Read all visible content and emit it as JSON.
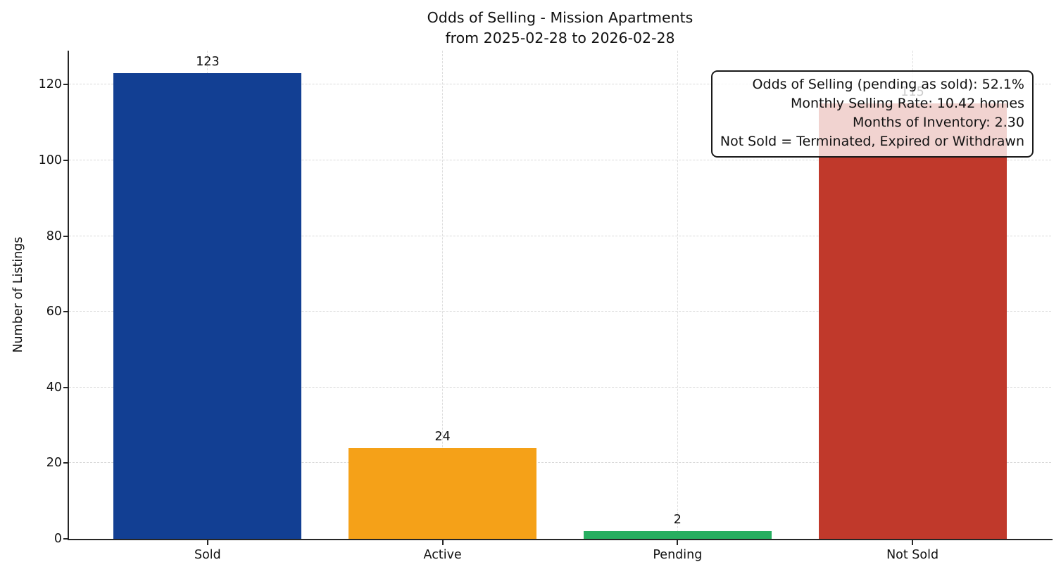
{
  "title": {
    "line1": "Odds of Selling - Mission Apartments",
    "line2": "from 2025-02-28 to 2026-02-28"
  },
  "chart_data": {
    "type": "bar",
    "title": "Odds of Selling - Mission Apartments\nfrom 2025-02-28 to 2026-02-28",
    "categories": [
      "Sold",
      "Active",
      "Pending",
      "Not Sold"
    ],
    "values": [
      123,
      24,
      2,
      115
    ],
    "bar_colors": [
      "#123f93",
      "#f5a118",
      "#27ae60",
      "#c0392b"
    ],
    "xlabel": "",
    "ylabel": "Number of Listings",
    "ylim": [
      0,
      129
    ],
    "yticks": [
      0,
      20,
      40,
      60,
      80,
      100,
      120
    ],
    "grid": true,
    "grid_style": "dashed",
    "legend_position": "none",
    "annotation_box": {
      "position": "top-right",
      "text_align": "right",
      "lines": [
        "Odds of Selling (pending as sold): 52.1%",
        "Monthly Selling Rate: 10.42 homes",
        "Months of Inventory: 2.30",
        "Not Sold = Terminated, Expired or Withdrawn"
      ]
    }
  }
}
